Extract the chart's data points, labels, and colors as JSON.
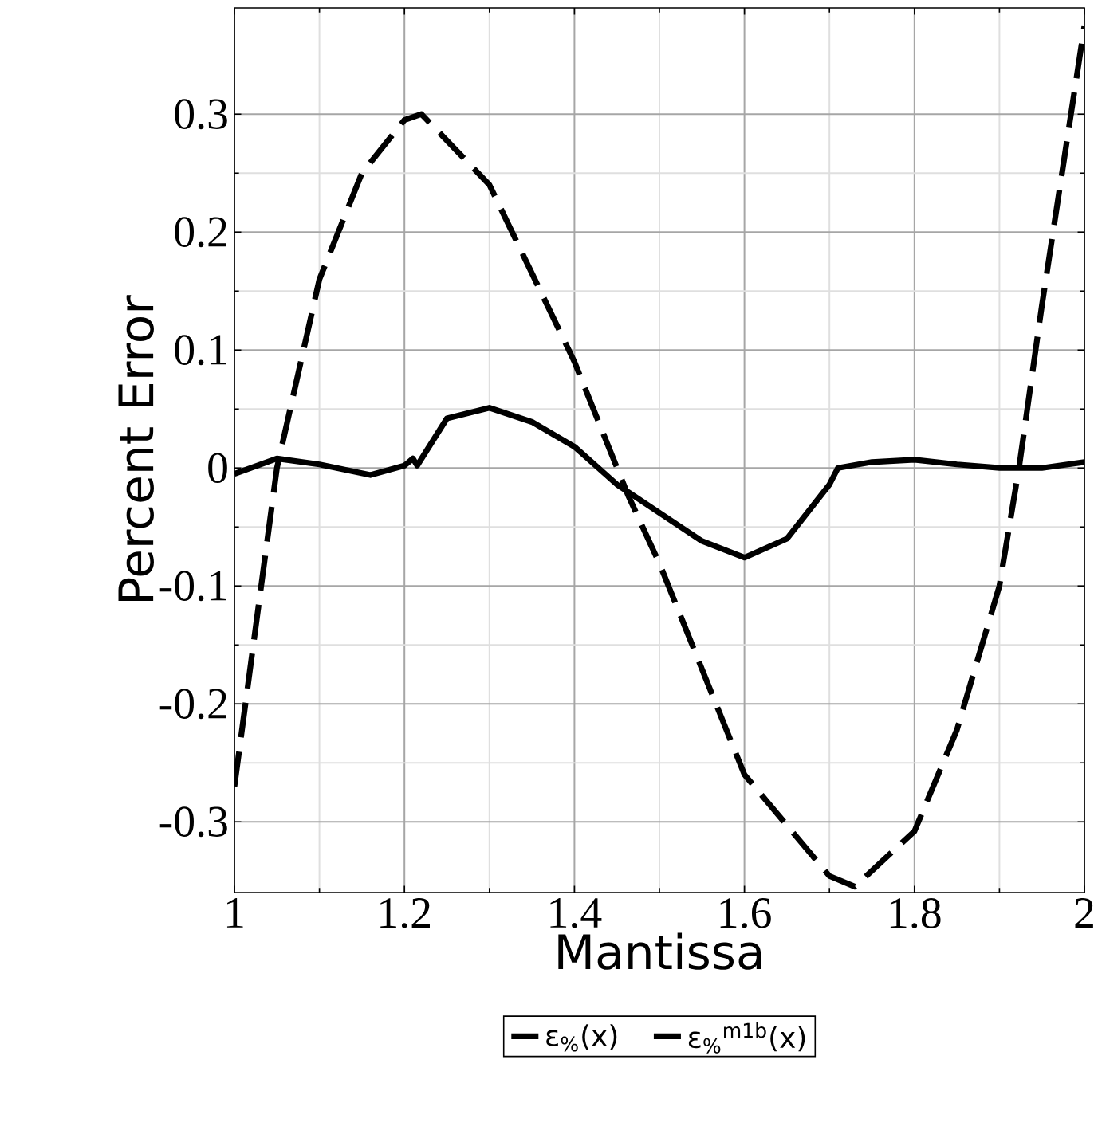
{
  "chart_data": {
    "type": "line",
    "xlabel": "Mantissa",
    "ylabel": "Percent Error",
    "xlim": [
      1,
      2
    ],
    "ylim": [
      -0.36,
      0.39
    ],
    "xticks": [
      1,
      1.2,
      1.4,
      1.6,
      1.8,
      2
    ],
    "yticks": [
      -0.3,
      -0.2,
      -0.1,
      0,
      0.1,
      0.2,
      0.3
    ],
    "grid": true,
    "legend": "bottom",
    "marker": "none",
    "series": [
      {
        "name": "ε$_{%}$(x)",
        "color": "#000000",
        "line_style": "dashed",
        "x": [
          1.0,
          1.05,
          1.1,
          1.15,
          1.2,
          1.22,
          1.3,
          1.4,
          1.463,
          1.5,
          1.6,
          1.7,
          1.73,
          1.8,
          1.85,
          1.9,
          1.923,
          1.95,
          2.0
        ],
        "values": [
          -0.27,
          0.0,
          0.16,
          0.25,
          0.295,
          0.3,
          0.24,
          0.09,
          -0.023,
          -0.081,
          -0.26,
          -0.346,
          -0.355,
          -0.308,
          -0.222,
          -0.1,
          0.0,
          0.138,
          0.375
        ]
      },
      {
        "name": "ε$_{%}$$^{m1b}$(x)",
        "color": "#000000",
        "line_style": "solid",
        "x": [
          1.0,
          1.05,
          1.1,
          1.16,
          1.2,
          1.21,
          1.215,
          1.25,
          1.3,
          1.35,
          1.4,
          1.45,
          1.5,
          1.55,
          1.6,
          1.65,
          1.7,
          1.71,
          1.75,
          1.8,
          1.85,
          1.9,
          1.95,
          2.0
        ],
        "values": [
          -0.005,
          0.008,
          0.003,
          -0.006,
          0.002,
          0.008,
          0.002,
          0.042,
          0.051,
          0.039,
          0.018,
          -0.014,
          -0.038,
          -0.062,
          -0.076,
          -0.06,
          -0.014,
          0.0,
          0.005,
          0.007,
          0.003,
          0.0,
          0.0,
          0.005
        ]
      }
    ]
  }
}
